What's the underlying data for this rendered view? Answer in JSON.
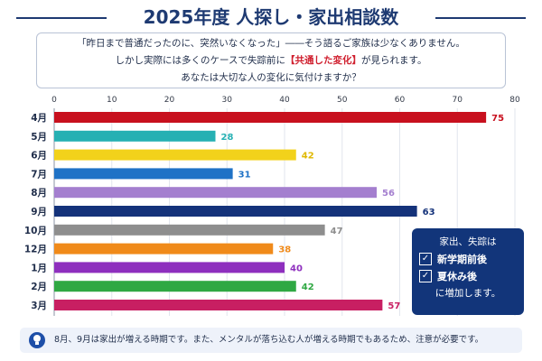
{
  "title": "2025年度 人探し・家出相談数",
  "intro": {
    "line1": "「昨日まで普通だったのに、突然いなくなった」――そう語るご家族は少なくありません。",
    "line2_pre": "しかし実際には多くのケースで失踪前に",
    "line2_highlight": "【共通した変化】",
    "line2_post": "が見られます。",
    "line3": "あなたは大切な人の変化に気付けますか？"
  },
  "chart_data": {
    "type": "bar",
    "orientation": "horizontal",
    "categories": [
      "4月",
      "5月",
      "6月",
      "7月",
      "8月",
      "9月",
      "10月",
      "12月",
      "1月",
      "2月",
      "3月"
    ],
    "values": [
      75,
      28,
      42,
      31,
      56,
      63,
      47,
      38,
      40,
      42,
      57
    ],
    "colors": [
      "#c8101e",
      "#26b0b3",
      "#f2d21b",
      "#1f72c6",
      "#a47fcf",
      "#14327a",
      "#8e8e8e",
      "#f08a1a",
      "#8e2fbe",
      "#2fa843",
      "#c81f62"
    ],
    "value_label_colors": [
      "#c8101e",
      "#26b0b3",
      "#e0b800",
      "#1f72c6",
      "#a47fcf",
      "#14327a",
      "#8e8e8e",
      "#f08a1a",
      "#8e2fbe",
      "#2fa843",
      "#c81f62"
    ],
    "xlim": [
      0,
      80
    ],
    "xticks": [
      0,
      10,
      20,
      30,
      40,
      50,
      60,
      70,
      80
    ],
    "grid": true
  },
  "note": {
    "line1": "家出、失踪は",
    "check_mark": "✓",
    "item1": "新学期前後",
    "item2": "夏休み後",
    "line4": "に増加します。"
  },
  "footer": {
    "icon": "lightbulb-icon",
    "text": "8月、9月は家出が増える時期です。また、メンタルが落ち込む人が増える時期でもあるため、注意が必要です。"
  }
}
